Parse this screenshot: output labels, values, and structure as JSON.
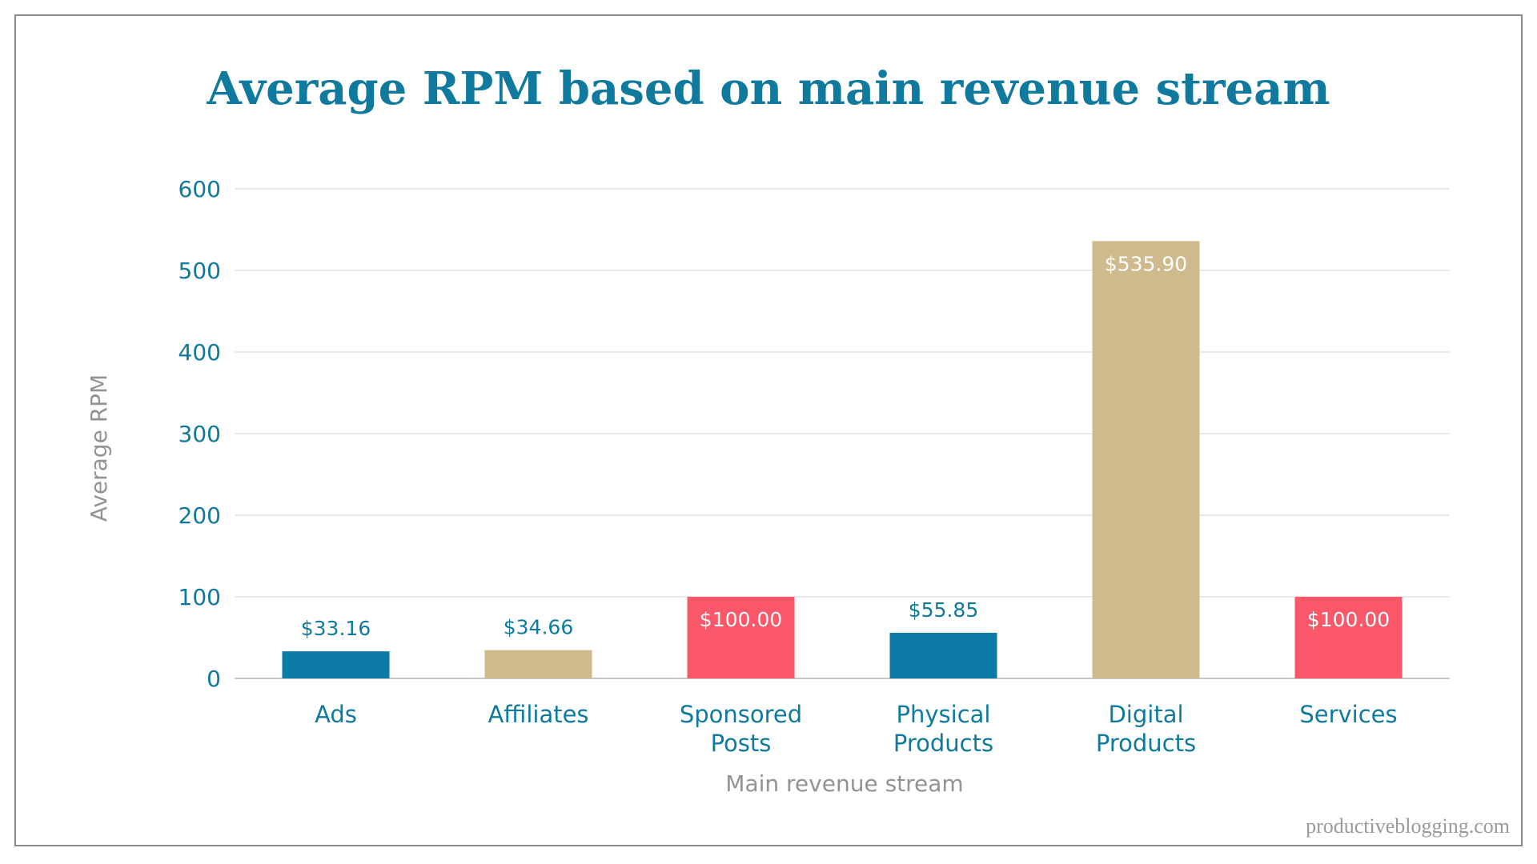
{
  "chart_data": {
    "type": "bar",
    "title": "Average RPM based on main revenue stream",
    "xlabel": "Main revenue stream",
    "ylabel": "Average RPM",
    "ylim": [
      0,
      600
    ],
    "yticks": [
      0,
      100,
      200,
      300,
      400,
      500,
      600
    ],
    "grid": true,
    "categories": [
      [
        "Ads"
      ],
      [
        "Affiliates"
      ],
      [
        "Sponsored",
        "Posts"
      ],
      [
        "Physical",
        "Products"
      ],
      [
        "Digital",
        "Products"
      ],
      [
        "Services"
      ]
    ],
    "values": [
      33.16,
      34.66,
      100.0,
      55.85,
      535.9,
      100.0
    ],
    "value_labels": [
      "$33.16",
      "$34.66",
      "$100.00",
      "$55.85",
      "$535.90",
      "$100.00"
    ],
    "bar_colors": [
      "#0b7aa5",
      "#cfba8e",
      "#fa5769",
      "#0b7aa5",
      "#cfba8e",
      "#fa5769"
    ],
    "label_inside": [
      false,
      false,
      true,
      false,
      true,
      true
    ]
  },
  "footer": {
    "source": "productiveblogging.com"
  },
  "colors": {
    "accent": "#0f7a9e",
    "axis_title": "#939393",
    "grid": "#dcdcdc"
  }
}
